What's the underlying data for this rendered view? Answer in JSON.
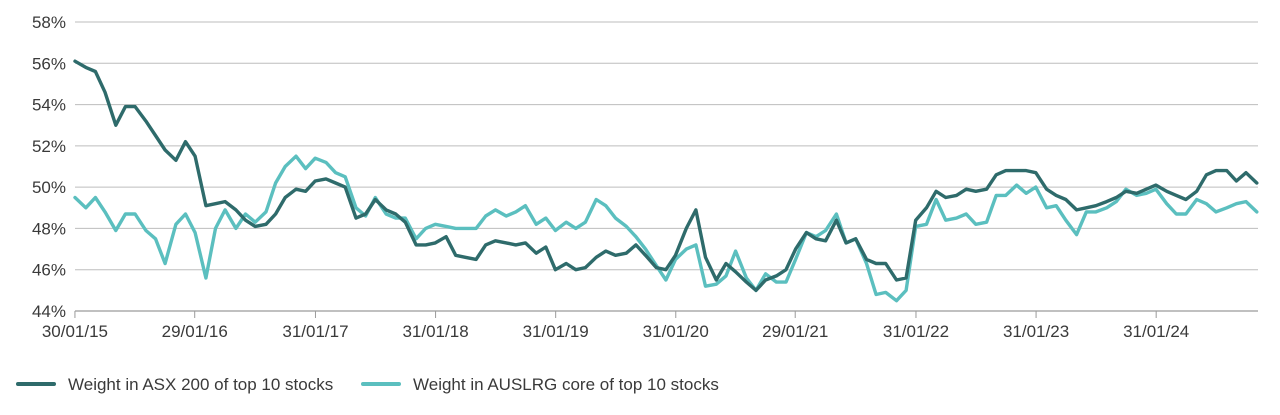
{
  "chart_data": {
    "type": "line",
    "x_tick_labels": [
      "30/01/15",
      "29/01/16",
      "31/01/17",
      "31/01/18",
      "31/01/19",
      "31/01/20",
      "29/01/21",
      "31/01/22",
      "31/01/23",
      "31/01/24"
    ],
    "y_tick_labels": [
      "44%",
      "46%",
      "48%",
      "50%",
      "52%",
      "54%",
      "56%",
      "58%"
    ],
    "ylim": [
      44,
      58
    ],
    "xlim": [
      2015.08,
      2024.93
    ],
    "grid": true,
    "legend_position": "bottom-left",
    "series": [
      {
        "name": "Weight in ASX 200 of top 10 stocks",
        "color": "#2e6b6b",
        "x": [
          2015.08,
          2015.17,
          2015.25,
          2015.33,
          2015.42,
          2015.5,
          2015.58,
          2015.67,
          2015.75,
          2015.83,
          2015.92,
          2016.0,
          2016.08,
          2016.17,
          2016.25,
          2016.33,
          2016.42,
          2016.5,
          2016.58,
          2016.67,
          2016.75,
          2016.83,
          2016.92,
          2017.0,
          2017.08,
          2017.17,
          2017.25,
          2017.33,
          2017.42,
          2017.5,
          2017.58,
          2017.67,
          2017.75,
          2017.83,
          2017.92,
          2018.0,
          2018.08,
          2018.17,
          2018.25,
          2018.33,
          2018.42,
          2018.5,
          2018.58,
          2018.67,
          2018.75,
          2018.83,
          2018.92,
          2019.0,
          2019.08,
          2019.17,
          2019.25,
          2019.33,
          2019.42,
          2019.5,
          2019.58,
          2019.67,
          2019.75,
          2019.83,
          2019.92,
          2020.0,
          2020.08,
          2020.17,
          2020.25,
          2020.33,
          2020.42,
          2020.5,
          2020.58,
          2020.67,
          2020.75,
          2020.83,
          2020.92,
          2021.0,
          2021.08,
          2021.17,
          2021.25,
          2021.33,
          2021.42,
          2021.5,
          2021.58,
          2021.67,
          2021.75,
          2021.83,
          2021.92,
          2022.0,
          2022.08,
          2022.17,
          2022.25,
          2022.33,
          2022.42,
          2022.5,
          2022.58,
          2022.67,
          2022.75,
          2022.83,
          2022.92,
          2023.0,
          2023.08,
          2023.17,
          2023.25,
          2023.33,
          2023.42,
          2023.5,
          2023.58,
          2023.67,
          2023.75,
          2023.83,
          2023.92,
          2024.0,
          2024.08,
          2024.17,
          2024.25,
          2024.33,
          2024.42,
          2024.5,
          2024.58,
          2024.67,
          2024.75,
          2024.83,
          2024.92
        ],
        "y": [
          56.1,
          55.8,
          55.6,
          54.6,
          53.0,
          53.9,
          53.9,
          53.2,
          52.5,
          51.8,
          51.3,
          52.2,
          51.5,
          49.1,
          49.2,
          49.3,
          48.9,
          48.4,
          48.1,
          48.2,
          48.7,
          49.5,
          49.9,
          49.8,
          50.3,
          50.4,
          50.2,
          50.0,
          48.5,
          48.7,
          49.4,
          48.9,
          48.7,
          48.3,
          47.2,
          47.2,
          47.3,
          47.6,
          46.7,
          46.6,
          46.5,
          47.2,
          47.4,
          47.3,
          47.2,
          47.3,
          46.8,
          47.1,
          46.0,
          46.3,
          46.0,
          46.1,
          46.6,
          46.9,
          46.7,
          46.8,
          47.2,
          46.7,
          46.1,
          46.0,
          46.7,
          48.0,
          48.9,
          46.6,
          45.5,
          46.3,
          45.9,
          45.4,
          45.0,
          45.5,
          45.7,
          46.0,
          47.0,
          47.8,
          47.5,
          47.4,
          48.4,
          47.3,
          47.5,
          46.5,
          46.3,
          46.3,
          45.5,
          45.6,
          48.4,
          49.0,
          49.8,
          49.5,
          49.6,
          49.9,
          49.8,
          49.9,
          50.6,
          50.8,
          50.8,
          50.8,
          50.7,
          49.9,
          49.6,
          49.4,
          48.9,
          49.0,
          49.1,
          49.3,
          49.5,
          49.8,
          49.7,
          49.9,
          50.1,
          49.8,
          49.6,
          49.4,
          49.8,
          50.6,
          50.8,
          50.8,
          50.3,
          50.7,
          50.2
        ]
      },
      {
        "name": "Weight in AUSLRG core of top 10 stocks",
        "color": "#5bbfbf",
        "x": [
          2015.08,
          2015.17,
          2015.25,
          2015.33,
          2015.42,
          2015.5,
          2015.58,
          2015.67,
          2015.75,
          2015.83,
          2015.92,
          2016.0,
          2016.08,
          2016.17,
          2016.25,
          2016.33,
          2016.42,
          2016.5,
          2016.58,
          2016.67,
          2016.75,
          2016.83,
          2016.92,
          2017.0,
          2017.08,
          2017.17,
          2017.25,
          2017.33,
          2017.42,
          2017.5,
          2017.58,
          2017.67,
          2017.75,
          2017.83,
          2017.92,
          2018.0,
          2018.08,
          2018.17,
          2018.25,
          2018.33,
          2018.42,
          2018.5,
          2018.58,
          2018.67,
          2018.75,
          2018.83,
          2018.92,
          2019.0,
          2019.08,
          2019.17,
          2019.25,
          2019.33,
          2019.42,
          2019.5,
          2019.58,
          2019.67,
          2019.75,
          2019.83,
          2019.92,
          2020.0,
          2020.08,
          2020.17,
          2020.25,
          2020.33,
          2020.42,
          2020.5,
          2020.58,
          2020.67,
          2020.75,
          2020.83,
          2020.92,
          2021.0,
          2021.08,
          2021.17,
          2021.25,
          2021.33,
          2021.42,
          2021.5,
          2021.58,
          2021.67,
          2021.75,
          2021.83,
          2021.92,
          2022.0,
          2022.08,
          2022.17,
          2022.25,
          2022.33,
          2022.42,
          2022.5,
          2022.58,
          2022.67,
          2022.75,
          2022.83,
          2022.92,
          2023.0,
          2023.08,
          2023.17,
          2023.25,
          2023.33,
          2023.42,
          2023.5,
          2023.58,
          2023.67,
          2023.75,
          2023.83,
          2023.92,
          2024.0,
          2024.08,
          2024.17,
          2024.25,
          2024.33,
          2024.42,
          2024.5,
          2024.58,
          2024.67,
          2024.75,
          2024.83,
          2024.92
        ],
        "y": [
          49.5,
          49.0,
          49.5,
          48.8,
          47.9,
          48.7,
          48.7,
          47.9,
          47.5,
          46.3,
          48.2,
          48.7,
          47.8,
          45.6,
          48.0,
          48.9,
          48.0,
          48.7,
          48.3,
          48.8,
          50.2,
          51.0,
          51.5,
          50.9,
          51.4,
          51.2,
          50.7,
          50.5,
          49.0,
          48.6,
          49.5,
          48.7,
          48.5,
          48.5,
          47.5,
          48.0,
          48.2,
          48.1,
          48.0,
          48.0,
          48.0,
          48.6,
          48.9,
          48.6,
          48.8,
          49.1,
          48.2,
          48.5,
          47.9,
          48.3,
          48.0,
          48.3,
          49.4,
          49.1,
          48.5,
          48.1,
          47.6,
          47.0,
          46.2,
          45.5,
          46.5,
          47.0,
          47.2,
          45.2,
          45.3,
          45.7,
          46.9,
          45.6,
          45.0,
          45.8,
          45.4,
          45.4,
          46.5,
          47.8,
          47.6,
          47.9,
          48.7,
          47.3,
          47.5,
          46.3,
          44.8,
          44.9,
          44.5,
          45.0,
          48.1,
          48.2,
          49.4,
          48.4,
          48.5,
          48.7,
          48.2,
          48.3,
          49.6,
          49.6,
          50.1,
          49.7,
          50.0,
          49.0,
          49.1,
          48.4,
          47.7,
          48.8,
          48.8,
          49.0,
          49.3,
          49.9,
          49.6,
          49.7,
          49.9,
          49.2,
          48.7,
          48.7,
          49.4,
          49.2,
          48.8,
          49.0,
          49.2,
          49.3,
          48.8
        ]
      }
    ]
  }
}
